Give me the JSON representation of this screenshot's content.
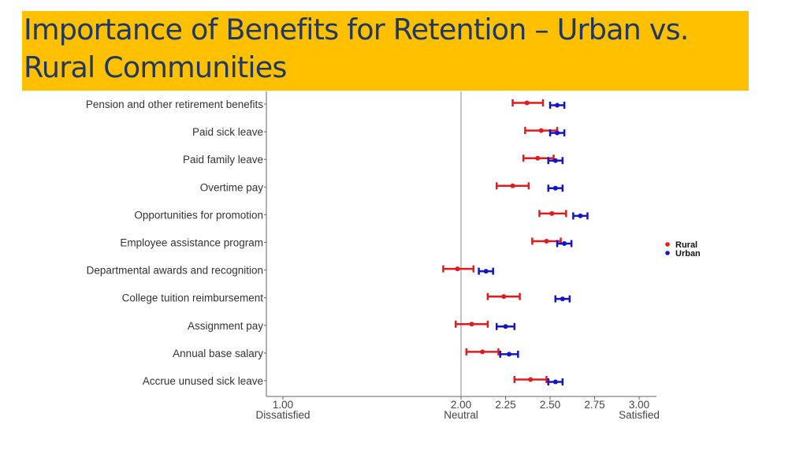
{
  "slide": {
    "title": "Importance of Benefits for Retention – Urban vs. Rural Communities"
  },
  "chart_data": {
    "type": "scatter",
    "subtype": "dot-and-whisker",
    "title": "Importance of Benefits for Retention – Urban vs. Rural Communities",
    "xlabel": "",
    "ylabel": "",
    "xlim": [
      1.0,
      3.0
    ],
    "x_ticks": [
      {
        "value": 1.0,
        "label": "1.00",
        "sublabel": "Dissatisfied"
      },
      {
        "value": 2.0,
        "label": "2.00",
        "sublabel": "Neutral"
      },
      {
        "value": 2.25,
        "label": "2.25",
        "sublabel": ""
      },
      {
        "value": 2.5,
        "label": "2.50",
        "sublabel": ""
      },
      {
        "value": 2.75,
        "label": "2.75",
        "sublabel": ""
      },
      {
        "value": 3.0,
        "label": "3.00",
        "sublabel": "Satisfied"
      }
    ],
    "reference_line": 2.0,
    "categories": [
      "Pension and other retirement benefits",
      "Paid sick leave",
      "Paid family leave",
      "Overtime pay",
      "Opportunities for promotion",
      "Employee assistance program",
      "Departmental awards and recognition",
      "College tuition reimbursement",
      "Assignment pay",
      "Annual base salary",
      "Accrue unused sick leave"
    ],
    "series": [
      {
        "name": "Rural",
        "color": "#e31a1c",
        "values": [
          2.37,
          2.45,
          2.43,
          2.29,
          2.51,
          2.48,
          1.98,
          2.24,
          2.06,
          2.12,
          2.39
        ],
        "lower": [
          2.29,
          2.36,
          2.35,
          2.2,
          2.44,
          2.4,
          1.9,
          2.15,
          1.97,
          2.03,
          2.3
        ],
        "upper": [
          2.46,
          2.54,
          2.52,
          2.38,
          2.59,
          2.56,
          2.07,
          2.33,
          2.15,
          2.21,
          2.48
        ]
      },
      {
        "name": "Urban",
        "color": "#1414c8",
        "values": [
          2.54,
          2.54,
          2.53,
          2.53,
          2.67,
          2.58,
          2.14,
          2.57,
          2.25,
          2.27,
          2.53
        ],
        "lower": [
          2.5,
          2.5,
          2.49,
          2.49,
          2.63,
          2.54,
          2.1,
          2.53,
          2.2,
          2.22,
          2.49
        ],
        "upper": [
          2.58,
          2.58,
          2.57,
          2.57,
          2.71,
          2.62,
          2.18,
          2.61,
          2.3,
          2.32,
          2.57
        ]
      }
    ],
    "legend_position": "right",
    "grid": false
  }
}
